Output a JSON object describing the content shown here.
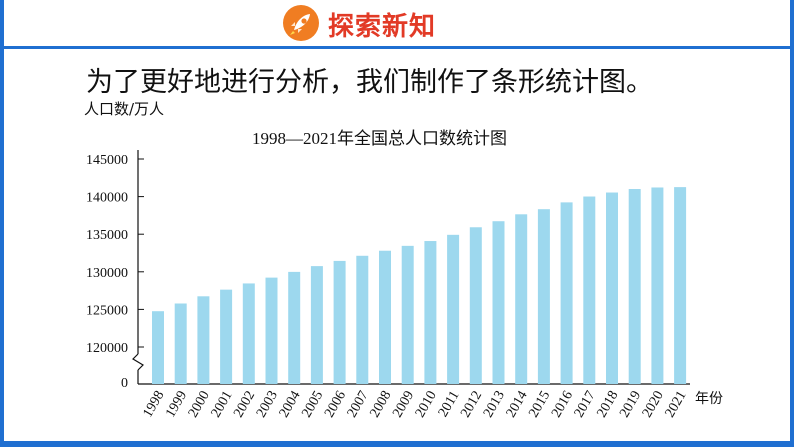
{
  "header": {
    "title": "探索新知",
    "icon": "rocket-icon",
    "accent_color": "#1f6fd1",
    "title_color": "#e23a26",
    "badge_color": "#f07d22"
  },
  "intro_text": "为了更好地进行分析，我们制作了条形统计图。",
  "chart_data": {
    "type": "bar",
    "title": "1998—2021年全国总人口数统计图",
    "ylabel": "人口数/万人",
    "xlabel": "年份",
    "ylim": [
      120000,
      145000
    ],
    "axis_break": true,
    "zero_label": "0",
    "yticks": [
      120000,
      125000,
      130000,
      135000,
      140000,
      145000
    ],
    "bar_color": "#9dd8ee",
    "categories": [
      "1998",
      "1999",
      "2000",
      "2001",
      "2002",
      "2003",
      "2004",
      "2005",
      "2006",
      "2007",
      "2008",
      "2009",
      "2010",
      "2011",
      "2012",
      "2013",
      "2014",
      "2015",
      "2016",
      "2017",
      "2018",
      "2019",
      "2020",
      "2021"
    ],
    "values": [
      124761,
      125786,
      126743,
      127627,
      128453,
      129227,
      129988,
      130756,
      131448,
      132129,
      132802,
      133450,
      134091,
      134916,
      135922,
      136726,
      137646,
      138326,
      139232,
      140011,
      140541,
      141008,
      141212,
      141260
    ]
  }
}
